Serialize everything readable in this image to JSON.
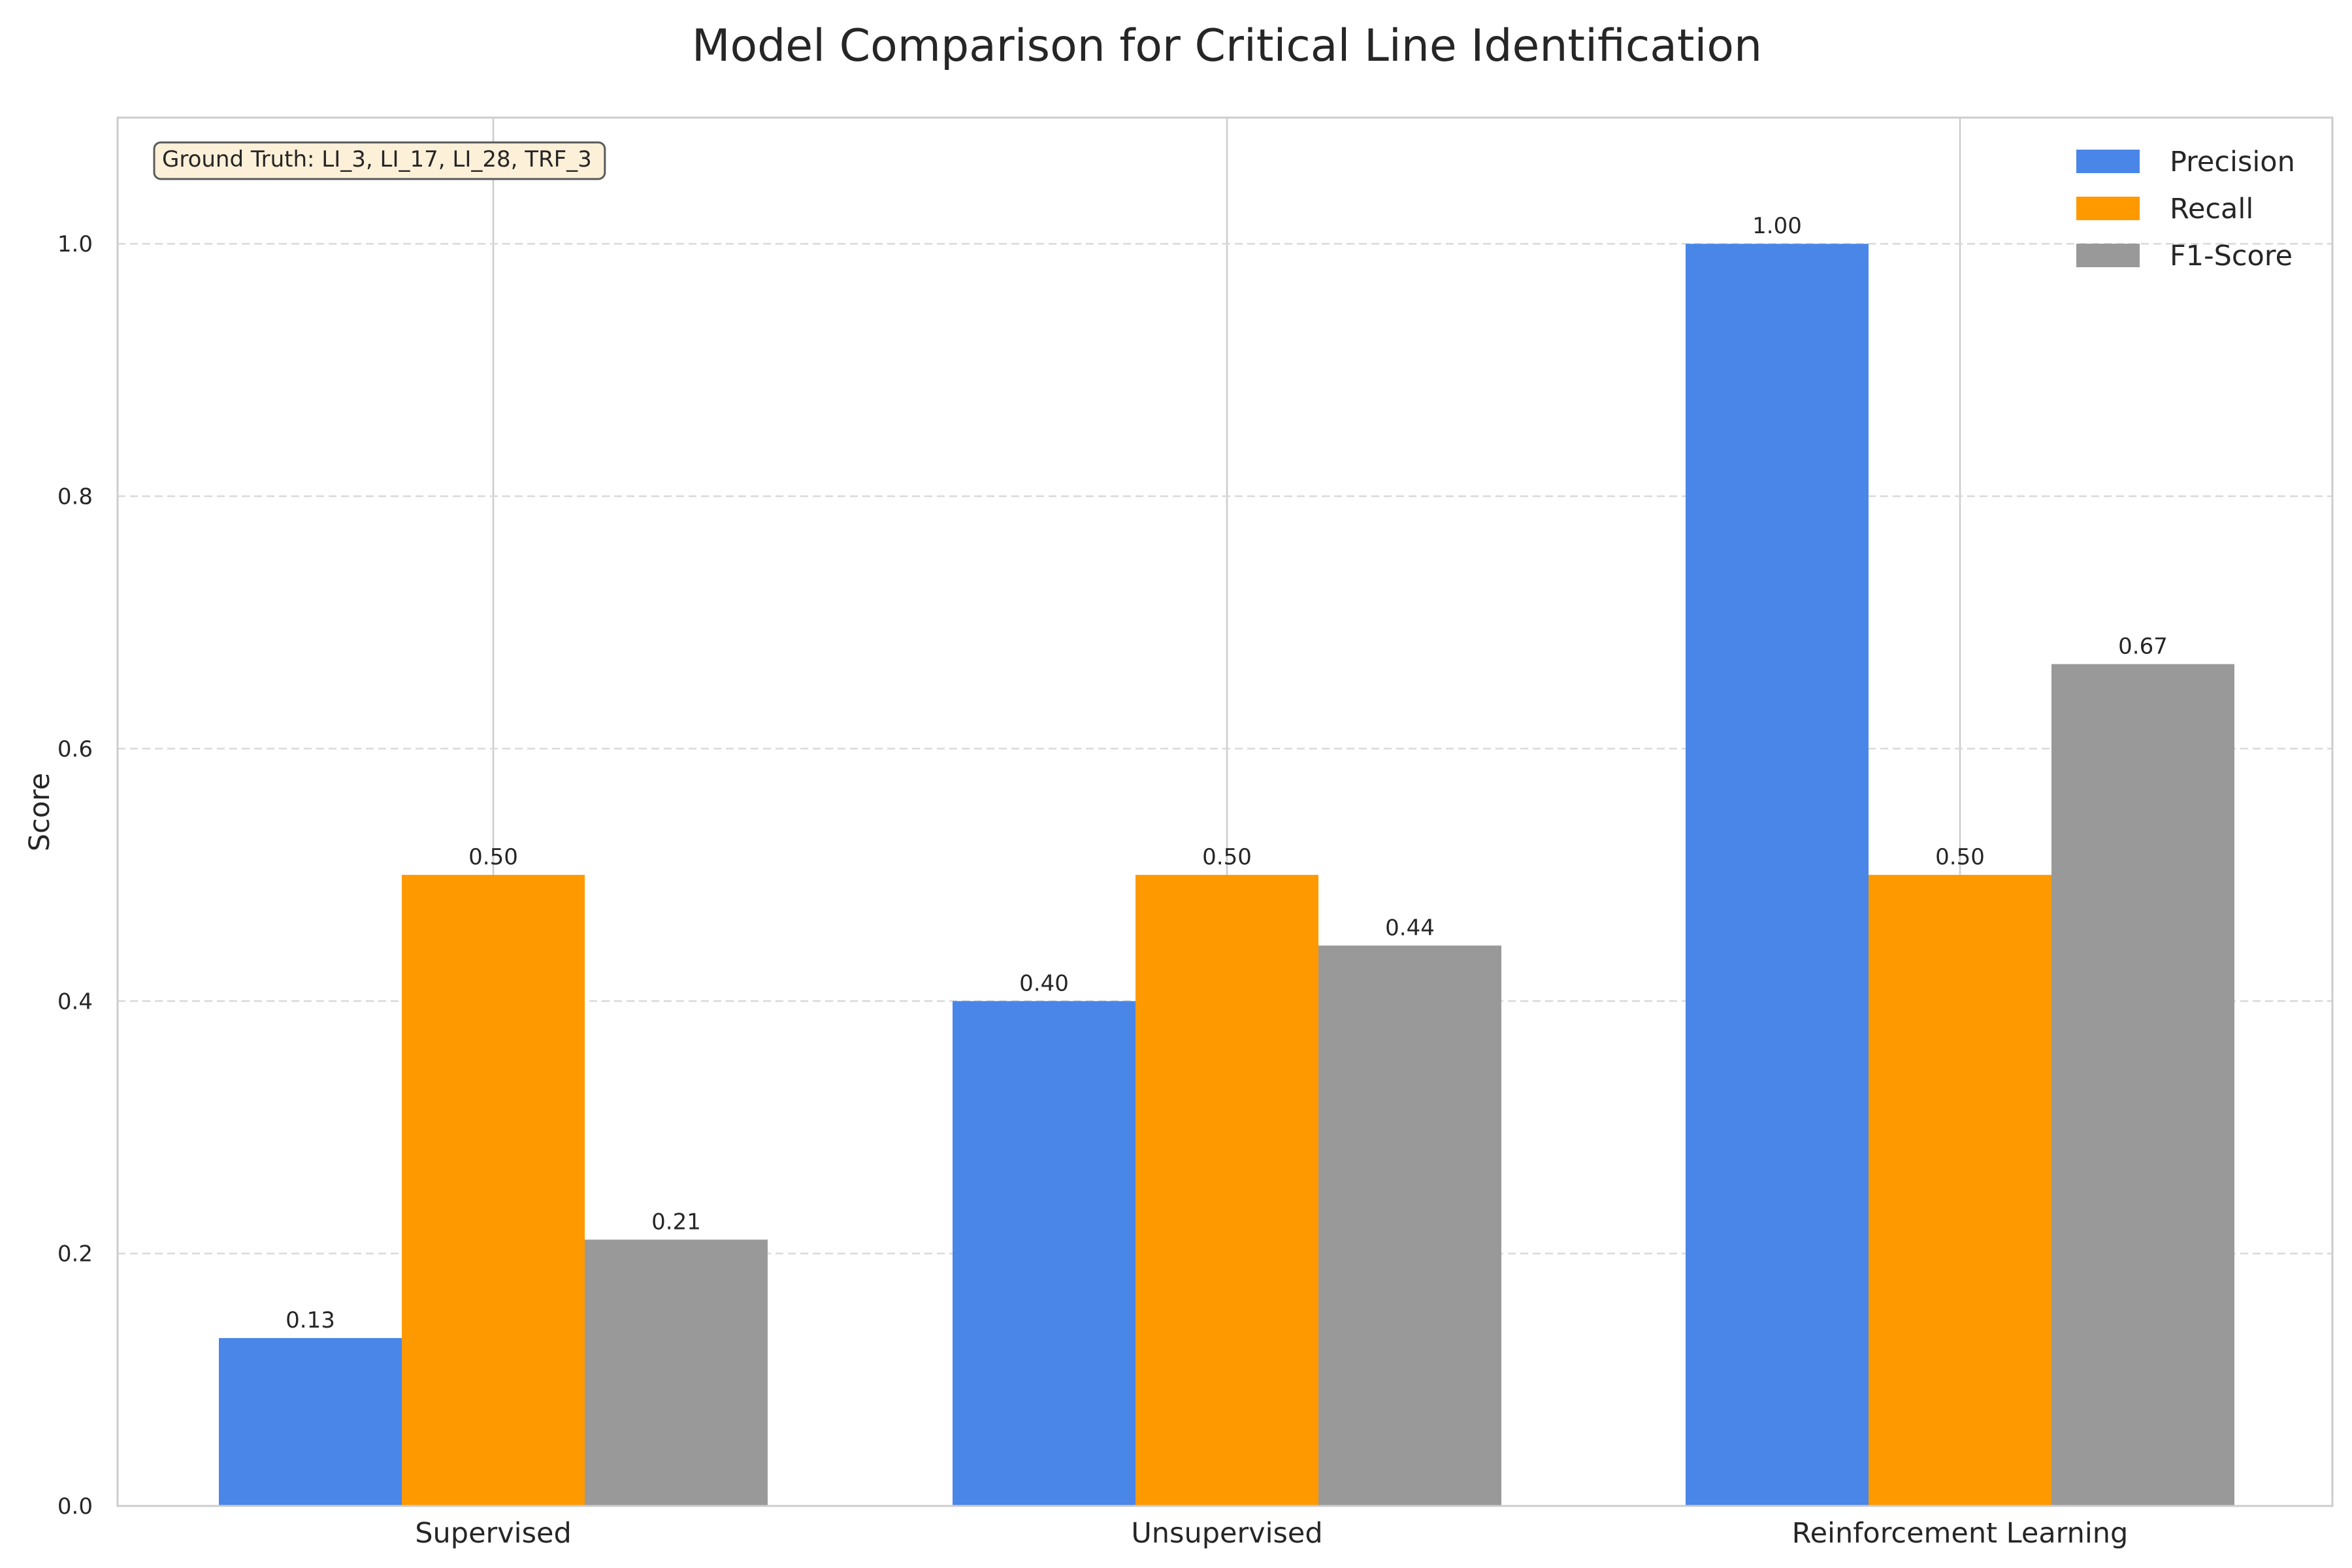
{
  "chart_data": {
    "type": "bar",
    "title": "Model Comparison for Critical Line Identification",
    "xlabel": "",
    "ylabel": "Score",
    "categories": [
      "Supervised",
      "Unsupervised",
      "Reinforcement Learning"
    ],
    "series": [
      {
        "name": "Precision",
        "values": [
          0.133,
          0.4,
          1.0
        ],
        "labels": [
          "0.13",
          "0.40",
          "1.00"
        ],
        "color": "#4a86e8"
      },
      {
        "name": "Recall",
        "values": [
          0.5,
          0.5,
          0.5
        ],
        "labels": [
          "0.50",
          "0.50",
          "0.50"
        ],
        "color": "#ff9900"
      },
      {
        "name": "F1-Score",
        "values": [
          0.211,
          0.444,
          0.667
        ],
        "labels": [
          "0.21",
          "0.44",
          "0.67"
        ],
        "color": "#999999"
      }
    ],
    "ylim": [
      0,
      1.1
    ],
    "yticks": [
      0.0,
      0.2,
      0.4,
      0.6,
      0.8,
      1.0
    ],
    "ytick_labels": [
      "0.0",
      "0.2",
      "0.4",
      "0.6",
      "0.8",
      "1.0"
    ],
    "annotation": "Ground Truth: LI_3, LI_17, LI_28, TRF_3",
    "grid": true,
    "legend_position": "top-right"
  }
}
